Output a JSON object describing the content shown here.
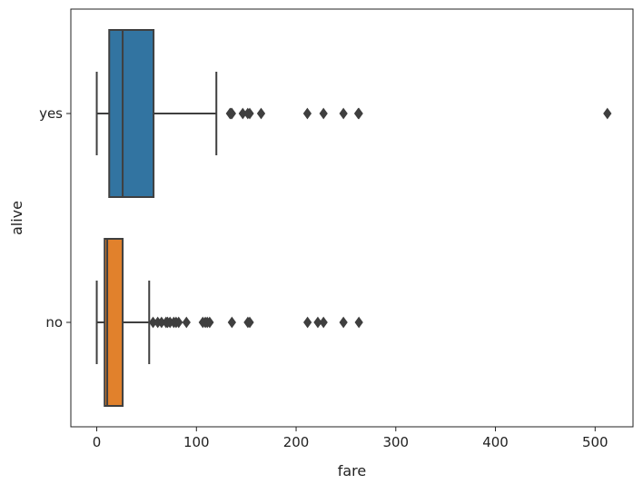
{
  "chart_data": {
    "type": "boxplot",
    "orientation": "horizontal",
    "xlabel": "fare",
    "ylabel": "alive",
    "xlim": [
      -26,
      538
    ],
    "xticks": [
      0,
      100,
      200,
      300,
      400,
      500
    ],
    "grid": false,
    "categories": [
      "yes",
      "no"
    ],
    "series": [
      {
        "category": "yes",
        "color": "#3274a1",
        "whisker_low": 0,
        "q1": 12.5,
        "median": 26,
        "q3": 57,
        "whisker_high": 120,
        "outliers": [
          133.7,
          134.5,
          135.6,
          146.5,
          151.5,
          153.5,
          164.9,
          211.3,
          227.5,
          247.5,
          262.4,
          263,
          512.3
        ]
      },
      {
        "category": "no",
        "color": "#e1812c",
        "whisker_low": 0,
        "q1": 7.9,
        "median": 10.5,
        "q3": 26,
        "whisker_high": 52.6,
        "outliers": [
          56.5,
          61.2,
          65,
          69.5,
          71,
          73.5,
          77.3,
          79.6,
          82.2,
          90,
          106.4,
          108.9,
          110.9,
          113.3,
          135.6,
          151.6,
          153.5,
          211.5,
          221.8,
          227.5,
          247.5,
          263
        ]
      }
    ]
  },
  "colors": {
    "axis": "#222222",
    "box_edge": "#3f3f3f",
    "background": "#ffffff"
  }
}
